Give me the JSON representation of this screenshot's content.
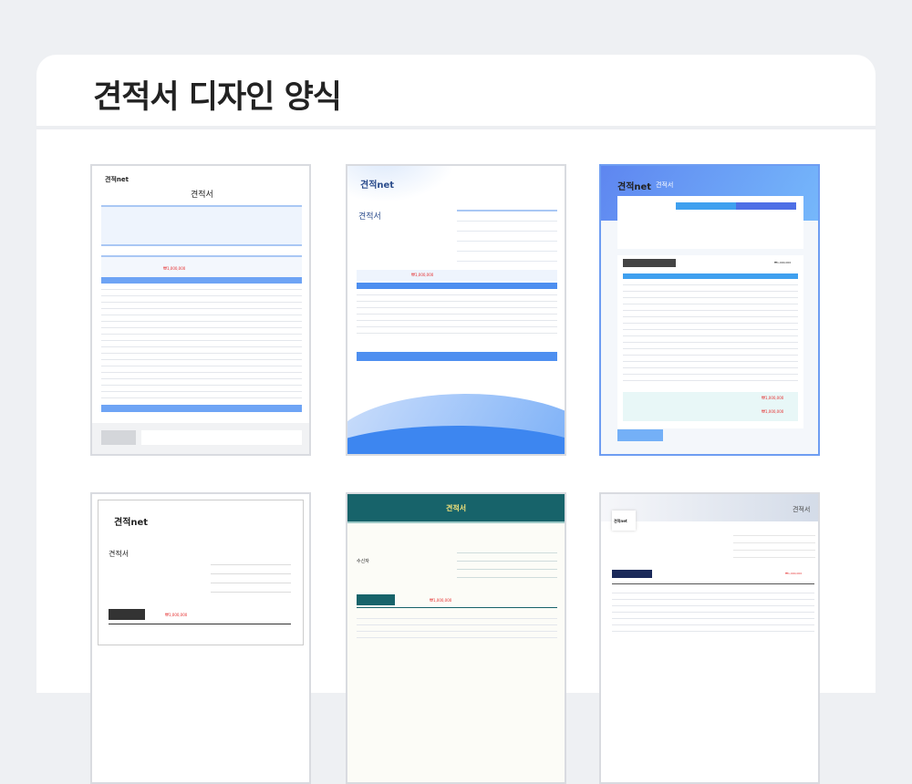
{
  "page": {
    "title": "견적서 디자인 양식"
  },
  "templates": [
    {
      "logo": "견적net",
      "doc_title": "견적서",
      "amount": "₩1,000,000",
      "accent": "#6ea4f5",
      "selected": false
    },
    {
      "logo": "견적net",
      "doc_title": "견적서",
      "amount": "₩1,000,000",
      "accent": "#4e8ff0",
      "selected": false
    },
    {
      "logo": "견적net",
      "doc_title": "견적서",
      "amount": "₩1,000,000",
      "amount2": "₩1,000,000",
      "accent": "#5b8def",
      "selected": true
    },
    {
      "logo": "견적net",
      "doc_title": "견적서",
      "amount": "₩1,000,000",
      "accent": "#333333",
      "selected": false
    },
    {
      "doc_title": "견적서",
      "recipient": "수신자",
      "amount": "₩1,000,000",
      "accent": "#17636a",
      "selected": false
    },
    {
      "logo": "견적net",
      "doc_title": "견적서",
      "amount": "₩1,000,000",
      "accent": "#1b2a5a",
      "selected": false
    }
  ]
}
